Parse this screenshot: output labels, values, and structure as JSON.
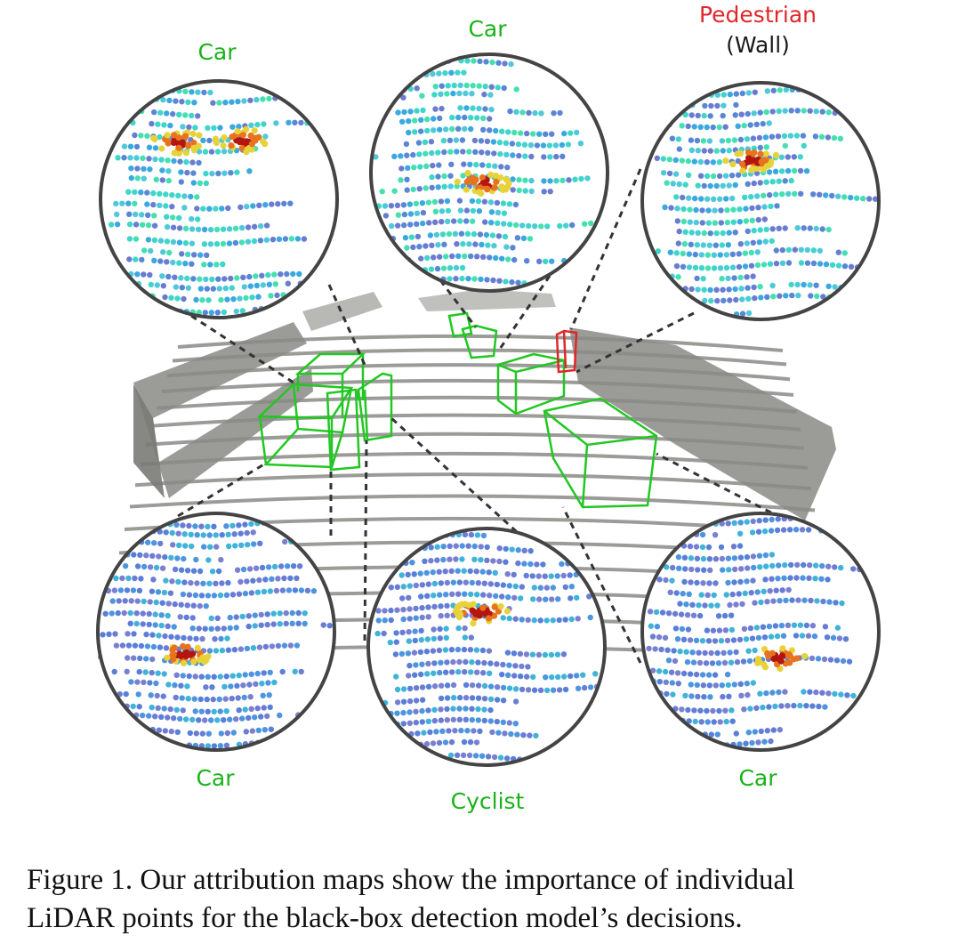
{
  "figure": {
    "labels": {
      "top_left": "Car",
      "top_center": "Car",
      "top_right_class": "Pedestrian",
      "top_right_note": "(Wall)",
      "bottom_left": "Car",
      "bottom_center": "Cyclist",
      "bottom_right": "Car"
    },
    "colors": {
      "detection_box": "#22c722",
      "false_positive_box": "#e0262b",
      "point_cloud": "#8a8a86",
      "circle_border": "#444444",
      "label_correct": "#19b319",
      "label_wrong": "#e0262b"
    }
  },
  "caption": {
    "line1": "Figure 1. Our attribution maps show the importance of individual",
    "line2": "LiDAR points for the black-box detection model’s decisions."
  }
}
